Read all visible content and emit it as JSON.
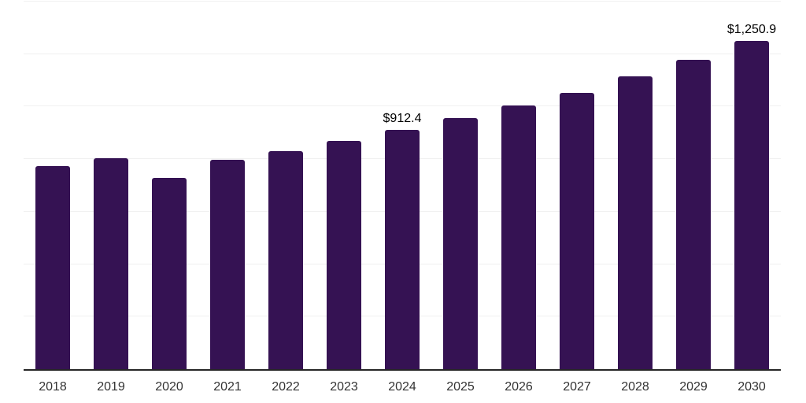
{
  "chart_data": {
    "type": "bar",
    "title": "",
    "xlabel": "",
    "ylabel": "",
    "categories": [
      "2018",
      "2019",
      "2020",
      "2021",
      "2022",
      "2023",
      "2024",
      "2025",
      "2026",
      "2027",
      "2028",
      "2029",
      "2030"
    ],
    "values": [
      772,
      802,
      730,
      796,
      829,
      868,
      912.4,
      956,
      1003,
      1053,
      1116,
      1179,
      1250.9
    ],
    "data_labels": [
      "",
      "",
      "",
      "",
      "",
      "",
      "$912.4",
      "",
      "",
      "",
      "",
      "",
      "$1,250.9"
    ],
    "ylim": [
      0,
      1400
    ],
    "gridline_step": 200,
    "grid": "horizontal",
    "legend_position": "none",
    "colors": {
      "bar_fill": "#351253",
      "gridline": "#f0f0f0",
      "axis_line": "#262626",
      "tick_label": "#333333",
      "data_label": "#000000",
      "background": "#ffffff"
    }
  }
}
